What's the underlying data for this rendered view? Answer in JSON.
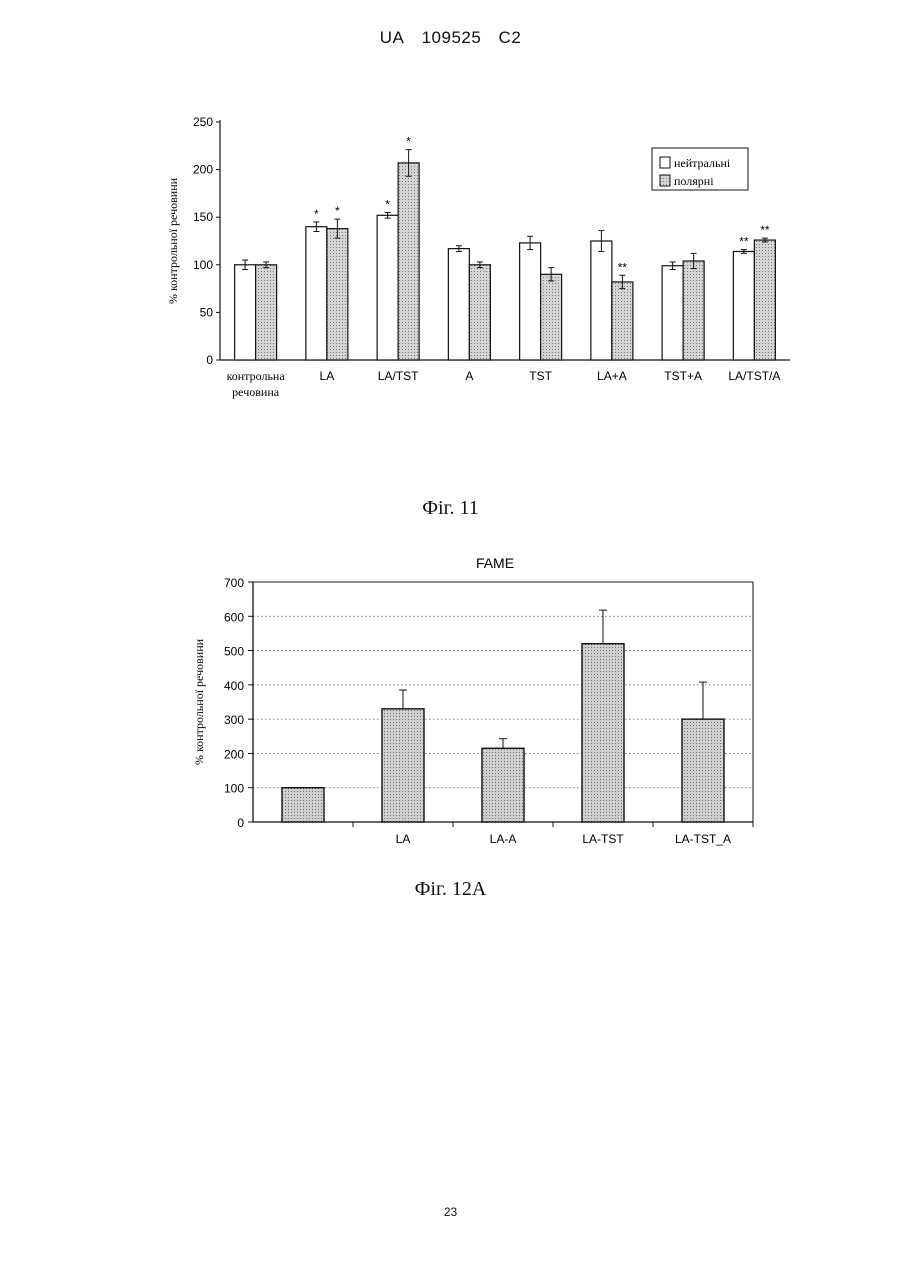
{
  "header": {
    "country": "UA",
    "number": "109525",
    "kind": "C2"
  },
  "figure11_caption": "Фіг. 11",
  "figure12_caption": "Фіг. 12А",
  "page_number": "23",
  "colors": {
    "ink": "#111111",
    "hatch": "#b0b0b0",
    "grid": "#555555"
  },
  "chart_data": [
    {
      "type": "bar",
      "title": "",
      "xlabel": "",
      "ylabel": "% контрольної речовини",
      "ylim": [
        0,
        250
      ],
      "yticks": [
        0,
        50,
        100,
        150,
        200,
        250
      ],
      "categories": [
        [
          "контрольна",
          "речовина"
        ],
        [
          "LA"
        ],
        [
          "LA/TST"
        ],
        [
          "A"
        ],
        [
          "TST"
        ],
        [
          "LA+A"
        ],
        [
          "TST+A"
        ],
        [
          "LA/TST/A"
        ]
      ],
      "series": [
        {
          "name": "нейтральні",
          "values": [
            100,
            140,
            152,
            117,
            123,
            125,
            99,
            114
          ],
          "errors": [
            5,
            5,
            3,
            3,
            7,
            11,
            4,
            2
          ],
          "marks": [
            "",
            "*",
            "*",
            "",
            "",
            "",
            "",
            "**"
          ]
        },
        {
          "name": "полярні",
          "values": [
            100,
            138,
            207,
            100,
            90,
            82,
            104,
            126
          ],
          "errors": [
            3,
            10,
            14,
            3,
            7,
            7,
            8,
            2
          ],
          "marks": [
            "",
            "*",
            "*",
            "",
            "",
            "**",
            "",
            "**"
          ]
        }
      ],
      "legend_position": "top-right",
      "grid": false
    },
    {
      "type": "bar",
      "title": "FAME",
      "xlabel": "",
      "ylabel": "% контрольної речовини",
      "ylim": [
        0,
        700
      ],
      "yticks": [
        0,
        100,
        200,
        300,
        400,
        500,
        600,
        700
      ],
      "categories": [
        "",
        "LA",
        "LA-A",
        "LA-TST",
        "LA-TST_A"
      ],
      "values": [
        100,
        330,
        215,
        520,
        300
      ],
      "errors": [
        0,
        55,
        28,
        98,
        108
      ],
      "grid": true
    }
  ]
}
